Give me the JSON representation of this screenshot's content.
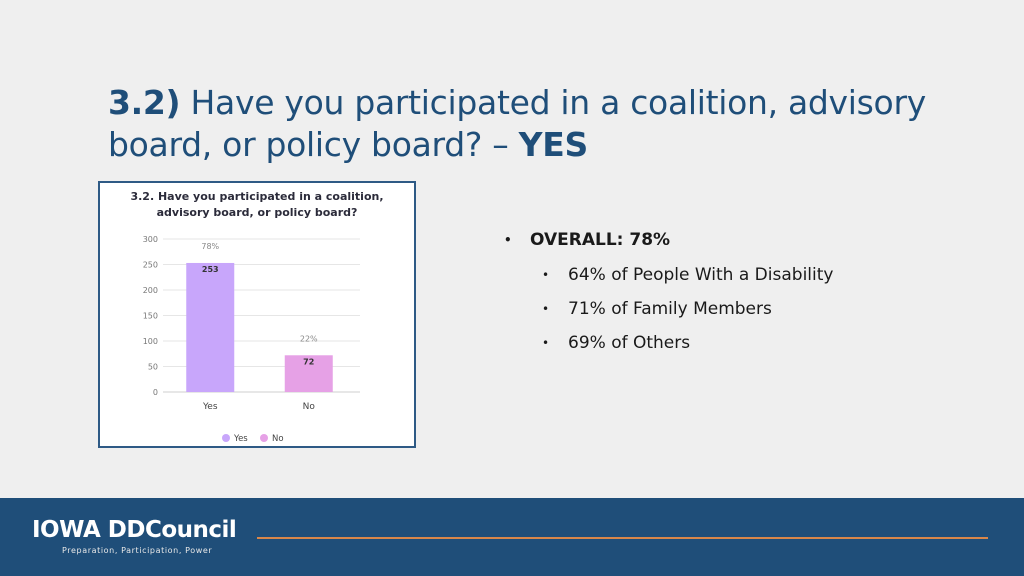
{
  "slide": {
    "title_number": "3.2)",
    "title_text": " Have you participated in a coalition, advisory board, or policy board? – ",
    "title_answer": "YES"
  },
  "bullets": {
    "main": "OVERALL: 78%",
    "subs": [
      "64% of People With a Disability",
      "71% of Family Members",
      "69% of Others"
    ]
  },
  "chart_data": {
    "type": "bar",
    "title": "3.2. Have you participated in a coalition, advisory board, or policy board?",
    "title_lines": [
      "3.2. Have you participated in a coalition,",
      "advisory board, or policy board?"
    ],
    "categories": [
      "Yes",
      "No"
    ],
    "values": [
      253,
      72
    ],
    "percent_labels": [
      "78%",
      "22%"
    ],
    "value_labels": [
      "253",
      "72"
    ],
    "colors": [
      "#c8a6fb",
      "#e6a1e6"
    ],
    "ylim": [
      0,
      300
    ],
    "yticks": [
      "0",
      "50",
      "100",
      "150",
      "200",
      "250",
      "300"
    ],
    "legend": [
      "Yes",
      "No"
    ],
    "legend_placement": "bottom",
    "grid": true
  },
  "footer": {
    "logo": "IOWA DDCouncil",
    "tagline": "Preparation, Participation, Power",
    "accent_color": "#d9874a",
    "background_color": "#1f4e79"
  }
}
